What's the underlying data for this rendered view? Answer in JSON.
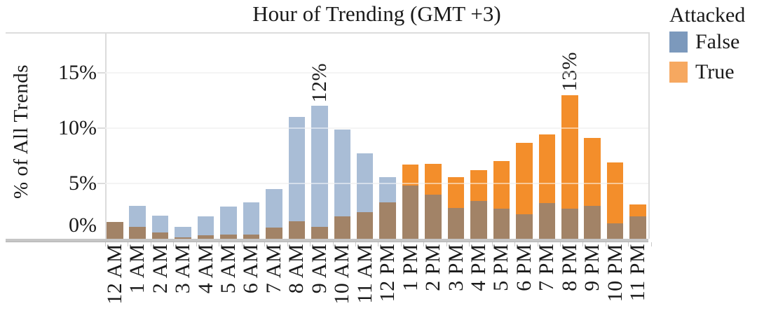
{
  "chart_data": {
    "type": "bar",
    "variant": "overlapping-bars",
    "title": "Hour of Trending (GMT +3)",
    "ylabel": "% of All Trends",
    "xlabel": "",
    "categories": [
      "12 AM",
      "1 AM",
      "2 AM",
      "3 AM",
      "4 AM",
      "5 AM",
      "6 AM",
      "7 AM",
      "8 AM",
      "9 AM",
      "10 AM",
      "11 AM",
      "12 PM",
      "1 PM",
      "2 PM",
      "3 PM",
      "4 PM",
      "5 PM",
      "6 PM",
      "7 PM",
      "8 PM",
      "9 PM",
      "10 PM",
      "11 PM"
    ],
    "series": [
      {
        "name": "False",
        "values": [
          1.5,
          3.0,
          2.1,
          1.1,
          2.0,
          2.9,
          3.3,
          4.5,
          11.0,
          12.0,
          9.9,
          7.7,
          5.6,
          4.8,
          4.0,
          2.8,
          3.4,
          2.7,
          2.2,
          3.2,
          2.7,
          3.0,
          1.4,
          2.0
        ]
      },
      {
        "name": "True",
        "values": [
          1.5,
          1.1,
          0.6,
          0.15,
          0.3,
          0.35,
          0.35,
          1.0,
          1.6,
          1.1,
          2.0,
          2.4,
          3.3,
          6.7,
          6.8,
          5.6,
          6.2,
          7.0,
          8.7,
          9.4,
          13.0,
          9.1,
          6.9,
          3.1
        ]
      }
    ],
    "yticks": [
      {
        "label": "15%",
        "value": 15
      },
      {
        "label": "10%",
        "value": 10
      },
      {
        "label": "5%",
        "value": 5
      },
      {
        "label": "0%",
        "value": 0
      }
    ],
    "ylim": [
      0,
      18.7
    ],
    "grid": "horizontal",
    "annotations": [
      {
        "category": "9 AM",
        "text": "12%"
      },
      {
        "category": "8 PM",
        "text": "13%"
      }
    ],
    "legend": {
      "title": "Attacked",
      "position": "top-right",
      "entries": [
        {
          "label": "False",
          "color": "#7C99BC"
        },
        {
          "label": "True",
          "color": "#F6A860"
        }
      ]
    },
    "colors": {
      "false_bar": "#A9BDD6",
      "true_bar": "#F38E2B",
      "overlap_bar": "#A28367",
      "gridline": "#E8E8E8",
      "plot_border": "#DCDCDC",
      "axis_band": "#C6C6C6",
      "tick": "#C9C9C9",
      "text": "#1A1A1A"
    }
  }
}
